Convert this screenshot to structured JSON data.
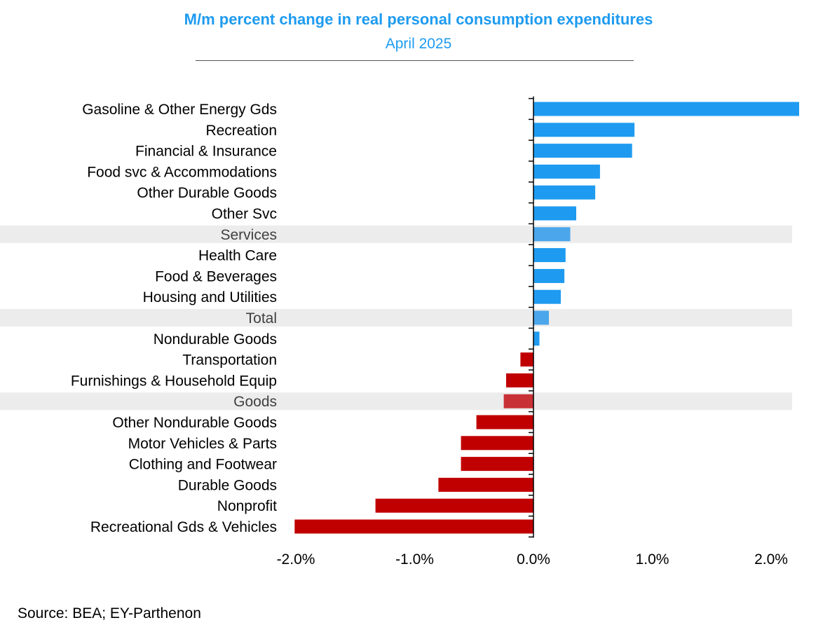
{
  "chart_data": {
    "type": "bar",
    "orientation": "horizontal",
    "title": "M/m percent change in real personal consumption expenditures",
    "subtitle": "April 2025",
    "source": "Source: BEA; EY-Parthenon",
    "xlim": [
      -2.0,
      2.0
    ],
    "x_ticks": [
      -2.0,
      -1.0,
      0.0,
      1.0,
      2.0
    ],
    "x_tick_labels": [
      "-2.0%",
      "-1.0%",
      "0.0%",
      "1.0%",
      "2.0%"
    ],
    "colors": {
      "positive": "#1e9bf0",
      "positive_highlight": "#4ba6ea",
      "negative": "#c00000",
      "negative_highlight": "#c83236",
      "highlight_band": "#ececec",
      "title": "#1e9bf0"
    },
    "categories": [
      {
        "label": "Gasoline & Other Energy Gds",
        "value": 2.33,
        "highlight": false
      },
      {
        "label": "Recreation",
        "value": 0.85,
        "highlight": false
      },
      {
        "label": "Financial & Insurance",
        "value": 0.83,
        "highlight": false
      },
      {
        "label": "Food svc & Accommodations",
        "value": 0.56,
        "highlight": false
      },
      {
        "label": "Other Durable Goods",
        "value": 0.52,
        "highlight": false
      },
      {
        "label": "Other Svc",
        "value": 0.36,
        "highlight": false
      },
      {
        "label": "Services",
        "value": 0.31,
        "highlight": true
      },
      {
        "label": "Health Care",
        "value": 0.27,
        "highlight": false
      },
      {
        "label": "Food & Beverages",
        "value": 0.26,
        "highlight": false
      },
      {
        "label": "Housing and Utilities",
        "value": 0.23,
        "highlight": false
      },
      {
        "label": "Total",
        "value": 0.13,
        "highlight": true
      },
      {
        "label": "Nondurable Goods",
        "value": 0.05,
        "highlight": false
      },
      {
        "label": "Transportation",
        "value": -0.11,
        "highlight": false
      },
      {
        "label": "Furnishings & Household Equip",
        "value": -0.23,
        "highlight": false
      },
      {
        "label": "Goods",
        "value": -0.25,
        "highlight": true
      },
      {
        "label": "Other Nondurable Goods",
        "value": -0.48,
        "highlight": false
      },
      {
        "label": "Motor Vehicles & Parts",
        "value": -0.61,
        "highlight": false
      },
      {
        "label": "Clothing and Footwear",
        "value": -0.61,
        "highlight": false
      },
      {
        "label": "Durable Goods",
        "value": -0.8,
        "highlight": false
      },
      {
        "label": "Nonprofit",
        "value": -1.33,
        "highlight": false
      },
      {
        "label": "Recreational Gds & Vehicles",
        "value": -2.01,
        "highlight": false
      }
    ]
  }
}
